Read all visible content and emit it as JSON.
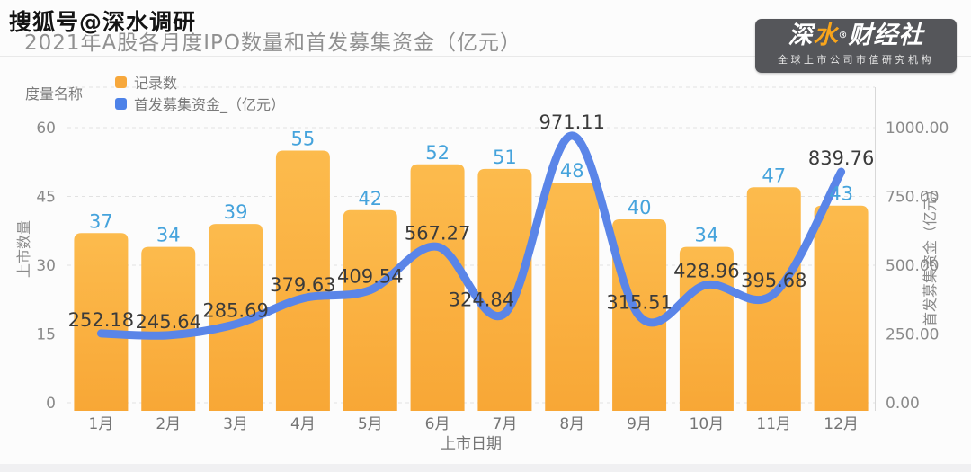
{
  "watermark": {
    "text": "搜狐号@深水调研"
  },
  "header": {
    "title": "2021年A股各月度IPO数量和首发募集资金（亿元）"
  },
  "logo": {
    "brand_part1": "深",
    "brand_part2": "水",
    "reg": "®",
    "brand_part3": "财经社",
    "tagline": "全球上市公司市值研究机构",
    "bg_color": "#55565A",
    "accent_color": "#F9A51B"
  },
  "legend": {
    "title": "度量名称",
    "items": [
      {
        "label": "记录数",
        "color": "#F7A83C"
      },
      {
        "label": "首发募集资金_（亿元）",
        "color": "#4D82E8"
      }
    ]
  },
  "chart_data": {
    "type": "bar+line",
    "categories": [
      "1月",
      "2月",
      "3月",
      "4月",
      "5月",
      "6月",
      "7月",
      "8月",
      "9月",
      "10月",
      "11月",
      "12月"
    ],
    "series": [
      {
        "name": "记录数",
        "type": "bar",
        "y_axis": "left",
        "color_top": "#FCBB4D",
        "color_bottom": "#F8A736",
        "label_color": "#45A3DC",
        "values": [
          37,
          34,
          39,
          55,
          42,
          52,
          51,
          48,
          40,
          34,
          47,
          43
        ]
      },
      {
        "name": "首发募集资金_（亿元）",
        "type": "line",
        "y_axis": "right",
        "color": "#5A85E8",
        "label_color": "#3B3B3B",
        "values": [
          252.18,
          245.64,
          285.69,
          379.63,
          409.54,
          567.27,
          324.84,
          971.11,
          315.51,
          428.96,
          395.68,
          839.76
        ]
      }
    ],
    "x_axis": {
      "title": "上市日期"
    },
    "left_axis": {
      "title": "上市数量",
      "ticks": [
        0,
        15,
        30,
        45,
        60
      ],
      "min": 0,
      "max": 60
    },
    "right_axis": {
      "title": "首发募集资金（亿元）",
      "ticks": [
        "0.00",
        "250.00",
        "500.00",
        "750.00",
        "1000.00"
      ],
      "tick_values": [
        0,
        250,
        500,
        750,
        1000
      ],
      "min": 0,
      "max": 1000
    },
    "grid": {
      "style": "dashed",
      "on": true,
      "color": "#E2E2E2"
    },
    "legend_position": "top-left"
  }
}
